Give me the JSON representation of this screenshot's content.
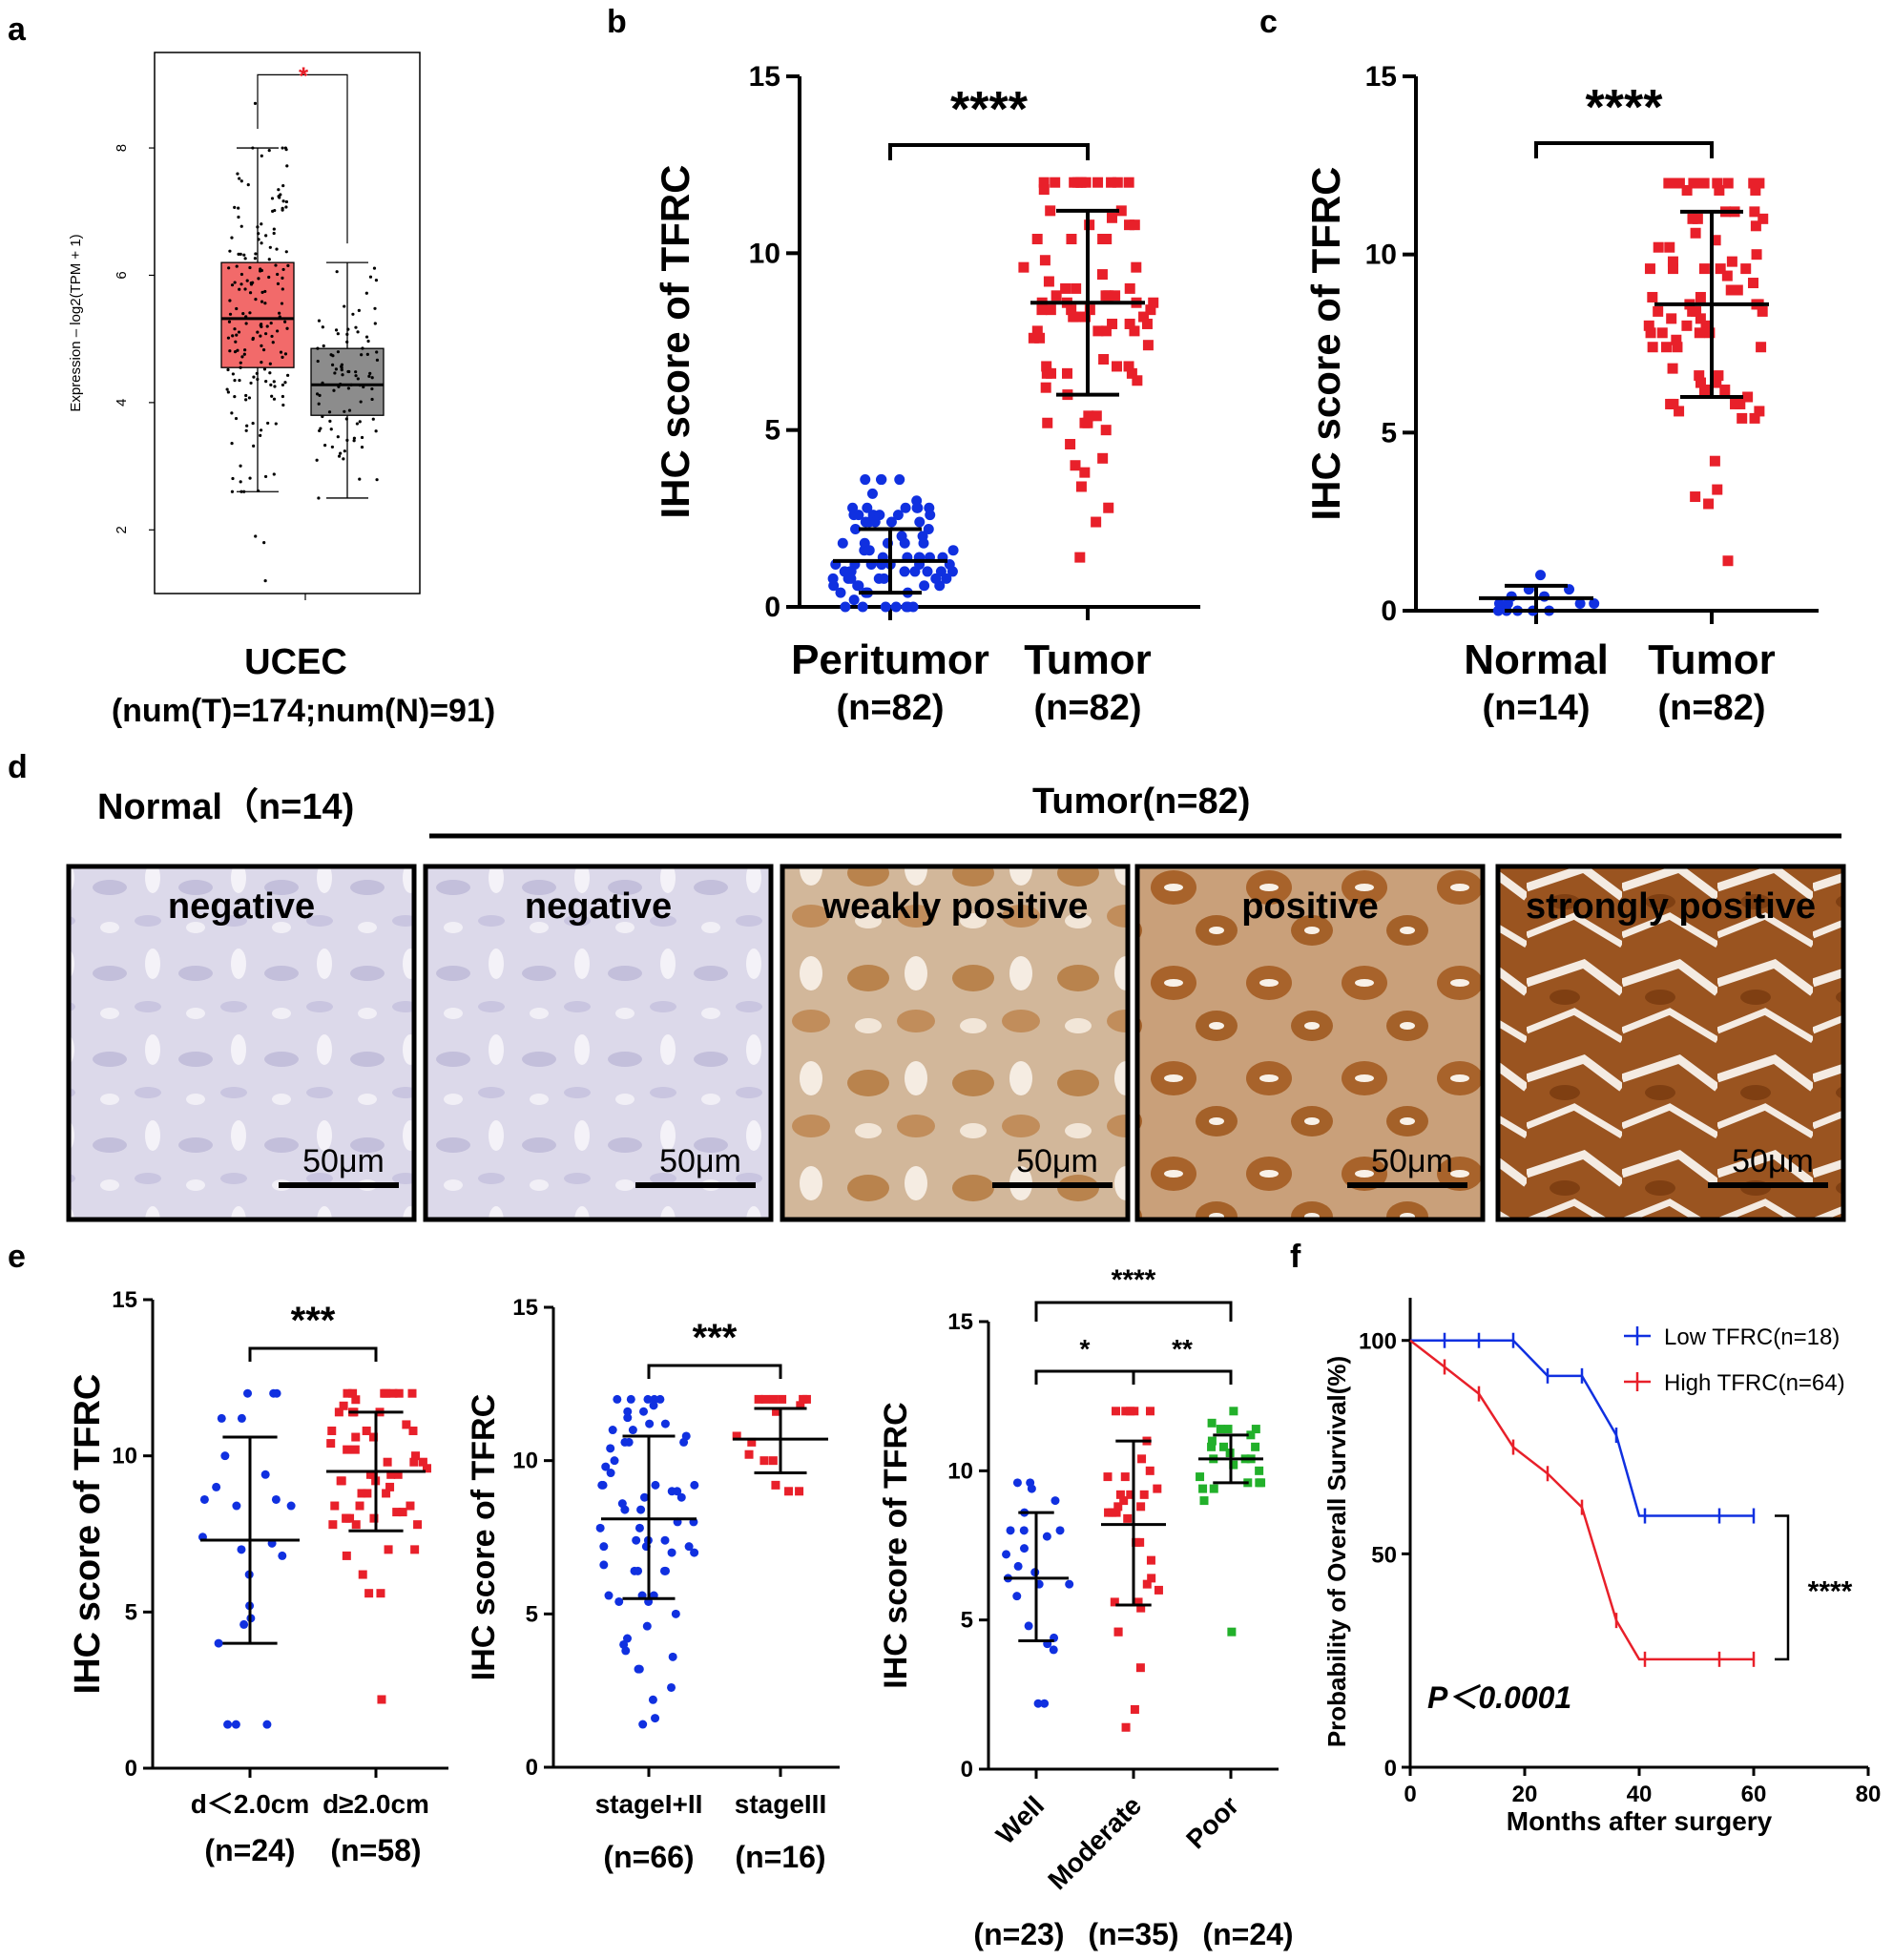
{
  "colors": {
    "red": "#e8202a",
    "blue": "#1030e0",
    "green": "#22b02a",
    "box_tumor": "#f26a6a",
    "box_normal": "#8c8c8c",
    "sig_red": "#e8202a"
  },
  "panel_labels": [
    "a",
    "b",
    "c",
    "d",
    "e",
    "f"
  ],
  "chart_data": [
    {
      "id": "a",
      "type": "box",
      "ylabel": "Expression – log2(TPM + 1)",
      "ylim": [
        1.0,
        9.5
      ],
      "yticks": [
        2,
        4,
        6,
        8
      ],
      "xlabel_line1": "UCEC",
      "xlabel_line2": "(num(T)=174;num(N)=91)",
      "significance": "*",
      "boxes": [
        {
          "group": "T",
          "q1": 4.55,
          "median": 5.32,
          "q3": 6.2,
          "whisker_low": 2.6,
          "whisker_high": 8.0,
          "n": 174,
          "outliers": [
            1.8,
            1.9,
            1.2,
            8.7
          ]
        },
        {
          "group": "N",
          "q1": 3.8,
          "median": 4.28,
          "q3": 4.85,
          "whisker_low": 2.5,
          "whisker_high": 6.2,
          "n": 91,
          "outliers": []
        }
      ]
    },
    {
      "id": "b",
      "type": "scatter",
      "ylabel": "IHC score of TFRC",
      "ylim": [
        0,
        15
      ],
      "yticks": [
        0,
        5,
        10,
        15
      ],
      "categories": [
        {
          "label": "Peritumor",
          "n": "(n=82)"
        },
        {
          "label": "Tumor",
          "n": "(n=82)"
        }
      ],
      "series": [
        {
          "category": "Peritumor",
          "mean": 1.3,
          "sd_low": 0.4,
          "sd_high": 2.2,
          "n": 82,
          "min": 0.0,
          "max": 3.6
        },
        {
          "category": "Tumor",
          "mean": 8.6,
          "sd_low": 6.0,
          "sd_high": 11.2,
          "n": 82,
          "min": 1.4,
          "max": 12.0
        }
      ],
      "comparisons": [
        {
          "from": 0,
          "to": 1,
          "label": "****"
        }
      ]
    },
    {
      "id": "c",
      "type": "scatter",
      "ylabel": "IHC score of TFRC",
      "ylim": [
        0,
        15
      ],
      "yticks": [
        0,
        5,
        10,
        15
      ],
      "categories": [
        {
          "label": "Normal",
          "n": "(n=14)"
        },
        {
          "label": "Tumor",
          "n": "(n=82)"
        }
      ],
      "series": [
        {
          "category": "Normal",
          "mean": 0.35,
          "sd_low": 0.0,
          "sd_high": 0.7,
          "n": 14,
          "min": 0.0,
          "max": 1.0
        },
        {
          "category": "Tumor",
          "mean": 8.6,
          "sd_low": 6.0,
          "sd_high": 11.2,
          "n": 82,
          "min": 1.4,
          "max": 12.0
        }
      ],
      "comparisons": [
        {
          "from": 0,
          "to": 1,
          "label": "****"
        }
      ]
    },
    {
      "id": "e1",
      "type": "scatter",
      "ylabel": "IHC score of TFRC",
      "ylim": [
        0,
        15
      ],
      "yticks": [
        0,
        5,
        10,
        15
      ],
      "categories": [
        {
          "label": "d＜2.0cm",
          "n": "(n=24)"
        },
        {
          "label": "d≥2.0cm",
          "n": "(n=58)"
        }
      ],
      "series": [
        {
          "category": "d＜2.0cm",
          "mean": 7.3,
          "sd_low": 4.0,
          "sd_high": 10.6,
          "n": 24,
          "min": 1.4,
          "max": 12.0
        },
        {
          "category": "d≥2.0cm",
          "mean": 9.5,
          "sd_low": 7.6,
          "sd_high": 11.4,
          "n": 58,
          "min": 2.2,
          "max": 12.0
        }
      ],
      "comparisons": [
        {
          "from": 0,
          "to": 1,
          "label": "***"
        }
      ]
    },
    {
      "id": "e2",
      "type": "scatter",
      "ylabel": "IHC score of TFRC",
      "ylim": [
        0,
        15
      ],
      "yticks": [
        0,
        5,
        10,
        15
      ],
      "categories": [
        {
          "label": "stageI+II",
          "n": "(n=66)"
        },
        {
          "label": "stageIII",
          "n": "(n=16)"
        }
      ],
      "series": [
        {
          "category": "stageI+II",
          "mean": 8.1,
          "sd_low": 5.5,
          "sd_high": 10.8,
          "n": 66,
          "min": 1.4,
          "max": 12.0
        },
        {
          "category": "stageIII",
          "mean": 10.7,
          "sd_low": 9.6,
          "sd_high": 11.7,
          "n": 16,
          "min": 9.0,
          "max": 12.0
        }
      ],
      "comparisons": [
        {
          "from": 0,
          "to": 1,
          "label": "***"
        }
      ]
    },
    {
      "id": "e3",
      "type": "scatter",
      "ylabel": "IHC score of TFRC",
      "ylim": [
        0,
        15
      ],
      "yticks": [
        0,
        5,
        10,
        15
      ],
      "categories": [
        {
          "label": "Well",
          "n": "(n=23)"
        },
        {
          "label": "Moderate",
          "n": "(n=35)"
        },
        {
          "label": "Poor",
          "n": "(n=24)"
        }
      ],
      "series": [
        {
          "category": "Well",
          "mean": 6.4,
          "sd_low": 4.3,
          "sd_high": 8.6,
          "n": 23,
          "min": 2.2,
          "max": 9.6
        },
        {
          "category": "Moderate",
          "mean": 8.2,
          "sd_low": 5.5,
          "sd_high": 11.0,
          "n": 35,
          "min": 1.4,
          "max": 12.0
        },
        {
          "category": "Poor",
          "mean": 10.4,
          "sd_low": 9.6,
          "sd_high": 11.2,
          "n": 24,
          "min": 4.6,
          "max": 12.0
        }
      ],
      "comparisons": [
        {
          "from": 0,
          "to": 2,
          "label": "****"
        },
        {
          "from": 0,
          "to": 1,
          "label": "*"
        },
        {
          "from": 1,
          "to": 2,
          "label": "**"
        }
      ]
    },
    {
      "id": "f",
      "type": "line",
      "ylabel": "Probability of Overall Survival(%)",
      "xlabel": "Months after surgery",
      "xlim": [
        0,
        80
      ],
      "ylim": [
        0,
        110
      ],
      "xticks": [
        0,
        20,
        40,
        60,
        80
      ],
      "yticks": [
        0,
        50,
        100
      ],
      "annotation": "P＜0.0001",
      "comparison_label": "****",
      "legend_position": "top-right",
      "series": [
        {
          "name": "Low TFRC(n=18)",
          "color": "#1030e0",
          "x": [
            0,
            18,
            24,
            30,
            36,
            40,
            48,
            54,
            60
          ],
          "y": [
            100,
            100,
            91.7,
            91.7,
            77.8,
            58.9,
            58.9,
            58.9,
            58.9
          ],
          "censor_x": [
            6,
            12,
            18,
            24,
            30,
            36,
            41,
            54,
            60
          ]
        },
        {
          "name": "High TFRC(n=64)",
          "color": "#e8202a",
          "x": [
            0,
            6,
            12,
            18,
            24,
            30,
            36,
            40,
            48,
            54,
            60
          ],
          "y": [
            100,
            93.8,
            87.5,
            75.0,
            68.8,
            60.9,
            34.4,
            25.3,
            25.3,
            25.3,
            25.3
          ],
          "censor_x": [
            6,
            12,
            18,
            24,
            30,
            36,
            41,
            54,
            60
          ]
        }
      ]
    }
  ],
  "panel_d": {
    "normal_header": "Normal（n=14)",
    "tumor_header": "Tumor(n=82)",
    "scale_bar": "50μm",
    "tiles": [
      {
        "label": "negative",
        "stain": "none"
      },
      {
        "label": "negative",
        "stain": "none"
      },
      {
        "label": "weakly positive",
        "stain": "weak"
      },
      {
        "label": "positive",
        "stain": "moderate"
      },
      {
        "label": "strongly positive",
        "stain": "strong"
      }
    ]
  }
}
